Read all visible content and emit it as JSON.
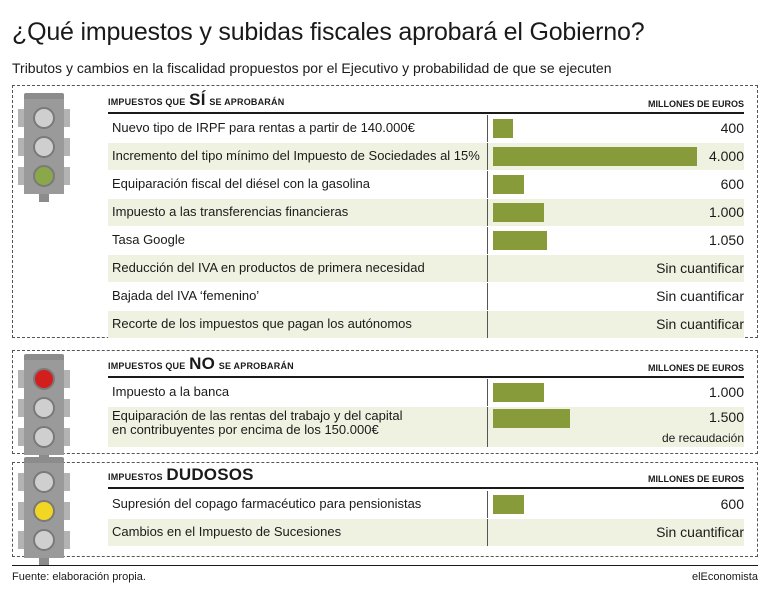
{
  "title": "¿Qué impuestos y subidas fiscales aprobará el Gobierno?",
  "subtitle": "Tributos y cambios en la fiscalidad propuestos por el Ejecutivo y probabilidad de que se ejecuten",
  "unit_label": "MILLONES DE EUROS",
  "source": "Fuente: elaboración propia.",
  "brand": "elEconomista",
  "colors": {
    "bar": "#889b3a",
    "shade": "#f0f2e1",
    "green": "#8aa84a",
    "red": "#d31e1e",
    "yellow": "#f1d624"
  },
  "sections": [
    {
      "head_pre": "IMPUESTOS QUE",
      "head_big": "SÍ",
      "head_post": "SE APROBARÁN",
      "light_icon": "traffic-light-green-icon"
    },
    {
      "head_pre": "IMPUESTOS QUE",
      "head_big": "NO",
      "head_post": "SE APROBARÁN",
      "light_icon": "traffic-light-red-icon"
    },
    {
      "head_pre": "IMPUESTOS",
      "head_big": "DUDOSOS",
      "head_post": "",
      "light_icon": "traffic-light-yellow-icon"
    }
  ],
  "chart_data": {
    "type": "bar",
    "orientation": "horizontal",
    "unit": "MILLONES DE EUROS",
    "xlim": [
      0,
      4000
    ],
    "groups": [
      {
        "name": "IMPUESTOS QUE SÍ SE APROBARÁN",
        "items": [
          {
            "label": "Nuevo tipo de IRPF para rentas a partir de 140.000€",
            "value": 400,
            "display": "400"
          },
          {
            "label": "Incremento del tipo mínimo del Impuesto de Sociedades al 15%",
            "value": 4000,
            "display": "4.000"
          },
          {
            "label": "Equiparación fiscal del diésel con la gasolina",
            "value": 600,
            "display": "600"
          },
          {
            "label": "Impuesto a las transferencias financieras",
            "value": 1000,
            "display": "1.000"
          },
          {
            "label": "Tasa Google",
            "value": 1050,
            "display": "1.050"
          },
          {
            "label": "Reducción del IVA en productos de primera necesidad",
            "value": null,
            "display": "Sin cuantificar"
          },
          {
            "label": "Bajada del IVA ‘femenino’",
            "value": null,
            "display": "Sin cuantificar"
          },
          {
            "label": "Recorte de los impuestos que pagan los autónomos",
            "value": null,
            "display": "Sin cuantificar"
          }
        ]
      },
      {
        "name": "IMPUESTOS QUE NO SE APROBARÁN",
        "items": [
          {
            "label": "Impuesto a la banca",
            "value": 1000,
            "display": "1.000"
          },
          {
            "label": "Equiparación de las rentas del trabajo y del capital",
            "label2": "en contribuyentes por encima de los 150.000€",
            "value": 1500,
            "display": "1.500",
            "note": "de recaudación"
          }
        ]
      },
      {
        "name": "IMPUESTOS DUDOSOS",
        "items": [
          {
            "label": "Supresión del copago farmacéutico para pensionistas",
            "value": 600,
            "display": "600"
          },
          {
            "label": "Cambios en el Impuesto de Sucesiones",
            "value": null,
            "display": "Sin cuantificar"
          }
        ]
      }
    ]
  }
}
